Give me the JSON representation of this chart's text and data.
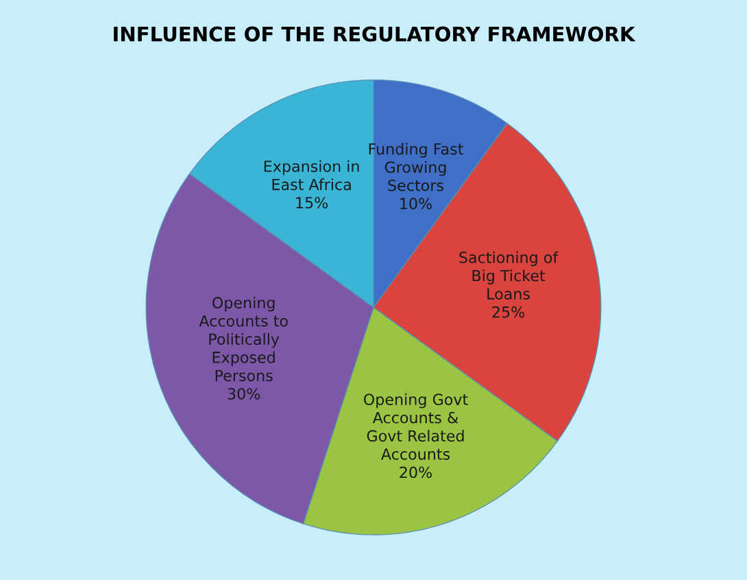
{
  "chart_data": {
    "type": "pie",
    "title": "INFLUENCE OF THE REGULATORY FRAMEWORK",
    "categories": [
      "Funding Fast Growing Sectors",
      "Sactioning of Big Ticket Loans",
      "Opening Govt Accounts & Govt Related Accounts",
      "Opening Accounts to Politically Exposed Persons",
      "Expansion in East Africa"
    ],
    "values": [
      10,
      25,
      20,
      30,
      15
    ],
    "colors": [
      "#3f6fc6",
      "#d9443e",
      "#9bc443",
      "#7d58a8",
      "#3bb5d6"
    ],
    "value_labels": [
      "10%",
      "25%",
      "20%",
      "30%",
      "15%"
    ],
    "legend": false
  }
}
